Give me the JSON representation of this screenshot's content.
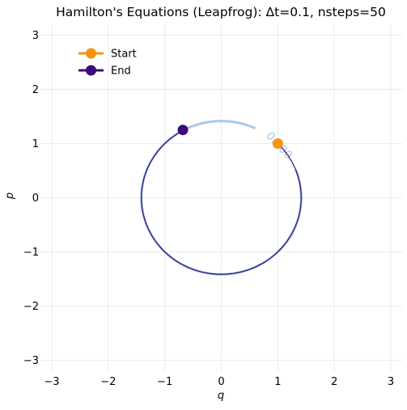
{
  "chart_data": {
    "type": "line",
    "title": "Hamilton's Equations (Leapfrog): Δt=0.1, nsteps=50",
    "xlabel": "q",
    "ylabel": "p",
    "xlim": [
      -3.2,
      3.2
    ],
    "ylim": [
      -3.2,
      3.2
    ],
    "xticks": [
      -3,
      -2,
      -1,
      0,
      1,
      2,
      3
    ],
    "yticks": [
      -3,
      -2,
      -1,
      0,
      1,
      2,
      3
    ],
    "xtick_labels": [
      "−3",
      "−2",
      "−1",
      "0",
      "1",
      "2",
      "3"
    ],
    "ytick_labels": [
      "−3",
      "−2",
      "−1",
      "0",
      "1",
      "2",
      "3"
    ],
    "grid": true,
    "legend_position": "top-left",
    "contour": {
      "level_label": "0.300",
      "radius": 1.414,
      "color": "#a9c9e6"
    },
    "trajectory": {
      "initial_q": 1.0,
      "initial_p": 1.0,
      "dt": 0.1,
      "nsteps": 50,
      "color": "#2a0a7a"
    },
    "series": [
      {
        "name": "Start",
        "points": [
          [
            1.0,
            1.0
          ]
        ],
        "color": "#f7930f"
      },
      {
        "name": "End",
        "points": [
          [
            -0.68,
            1.25
          ]
        ],
        "color": "#3b0a78"
      }
    ]
  }
}
